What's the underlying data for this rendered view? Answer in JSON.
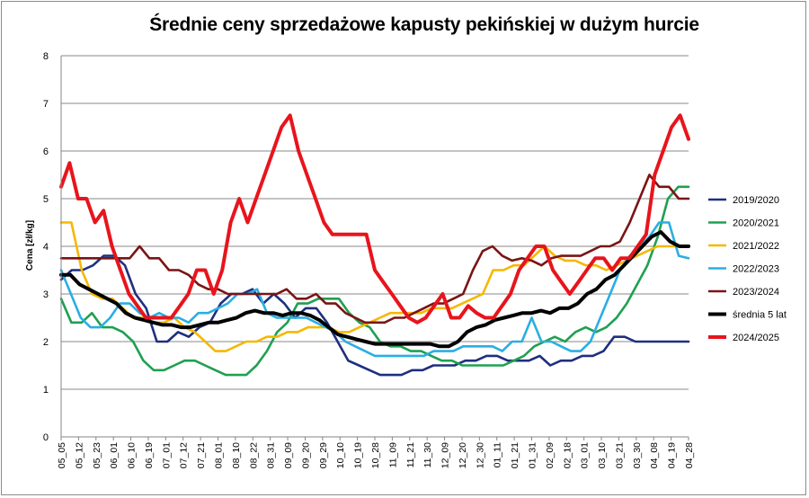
{
  "chart_data": {
    "type": "line",
    "title": "Średnie ceny sprzedażowe kapusty pekińskiej w dużym hurcie",
    "xlabel": "",
    "ylabel": "Cena [zł/kg]",
    "ylim": [
      0,
      8
    ],
    "yticks": [
      0,
      1,
      2,
      3,
      4,
      5,
      6,
      7,
      8
    ],
    "grid": "horizontal",
    "legend_position": "right",
    "x_tick_labels": [
      "05_05",
      "05_12",
      "05_23",
      "06_01",
      "06_10",
      "06_19",
      "07_01",
      "07_12",
      "07_21",
      "08_01",
      "08_10",
      "08_22",
      "08_31",
      "09_09",
      "09_20",
      "09_29",
      "10_10",
      "10_19",
      "10_28",
      "11_09",
      "11_21",
      "11_30",
      "12_09",
      "12_20",
      "12_30",
      "01_11",
      "01_21",
      "01_31",
      "02_09",
      "02_18",
      "03_01",
      "03_10",
      "03_21",
      "03_30",
      "04_08",
      "04_19",
      "04_28"
    ],
    "series": [
      {
        "name": "2019/2020",
        "color": "#1f2f7e",
        "width": 2.6,
        "values": [
          3.3,
          3.5,
          3.5,
          3.6,
          3.8,
          3.8,
          3.6,
          3.0,
          2.7,
          2.0,
          2.0,
          2.2,
          2.1,
          2.3,
          2.4,
          2.8,
          3.0,
          3.0,
          3.1,
          2.8,
          3.0,
          2.8,
          2.5,
          2.7,
          2.7,
          2.4,
          2.0,
          1.6,
          1.5,
          1.4,
          1.3,
          1.3,
          1.3,
          1.4,
          1.4,
          1.5,
          1.5,
          1.5,
          1.6,
          1.6,
          1.7,
          1.7,
          1.6,
          1.6,
          1.6,
          1.7,
          1.5,
          1.6,
          1.6,
          1.7,
          1.7,
          1.8,
          2.1,
          2.1,
          2.0,
          2.0,
          2.0,
          2.0,
          2.0,
          2.0
        ]
      },
      {
        "name": "2020/2021",
        "color": "#1fa050",
        "width": 2.6,
        "values": [
          2.9,
          2.4,
          2.4,
          2.6,
          2.3,
          2.3,
          2.2,
          2.0,
          1.6,
          1.4,
          1.4,
          1.5,
          1.6,
          1.6,
          1.5,
          1.4,
          1.3,
          1.3,
          1.3,
          1.5,
          1.8,
          2.2,
          2.4,
          2.8,
          2.8,
          2.9,
          2.9,
          2.9,
          2.6,
          2.4,
          2.3,
          2.0,
          1.9,
          1.9,
          1.8,
          1.8,
          1.7,
          1.6,
          1.6,
          1.5,
          1.5,
          1.5,
          1.5,
          1.5,
          1.6,
          1.7,
          1.9,
          2.0,
          2.1,
          2.0,
          2.2,
          2.3,
          2.2,
          2.3,
          2.5,
          2.8,
          3.2,
          3.6,
          4.2,
          5.0,
          5.25,
          5.25
        ]
      },
      {
        "name": "2021/2022",
        "color": "#f5b800",
        "width": 2.6,
        "values": [
          4.5,
          4.5,
          3.5,
          3.0,
          2.9,
          2.9,
          2.7,
          2.5,
          2.5,
          2.4,
          2.4,
          2.5,
          2.3,
          2.2,
          2.0,
          1.8,
          1.8,
          1.9,
          2.0,
          2.0,
          2.1,
          2.1,
          2.2,
          2.2,
          2.3,
          2.3,
          2.3,
          2.2,
          2.2,
          2.3,
          2.4,
          2.5,
          2.6,
          2.6,
          2.6,
          2.6,
          2.7,
          2.7,
          2.7,
          2.8,
          2.9,
          3.0,
          3.5,
          3.5,
          3.6,
          3.6,
          3.8,
          4.0,
          3.8,
          3.7,
          3.7,
          3.6,
          3.6,
          3.5,
          3.6,
          3.7,
          3.8,
          3.9,
          4.0,
          4.0,
          4.0,
          4.0
        ]
      },
      {
        "name": "2022/2023",
        "color": "#2aaee2",
        "width": 2.6,
        "values": [
          3.5,
          3.0,
          2.5,
          2.3,
          2.3,
          2.5,
          2.8,
          2.8,
          2.6,
          2.5,
          2.6,
          2.5,
          2.5,
          2.4,
          2.6,
          2.6,
          2.7,
          2.8,
          3.0,
          3.0,
          3.1,
          2.6,
          2.5,
          2.5,
          2.5,
          2.5,
          2.4,
          2.3,
          2.2,
          2.0,
          1.9,
          1.8,
          1.7,
          1.7,
          1.7,
          1.7,
          1.7,
          1.7,
          1.8,
          1.8,
          1.8,
          1.9,
          1.9,
          1.9,
          1.9,
          1.8,
          2.0,
          2.0,
          2.5,
          2.0,
          2.0,
          1.9,
          1.8,
          1.8,
          2.0,
          2.5,
          3.0,
          3.5,
          3.8,
          4.0,
          4.2,
          4.5,
          4.5,
          3.8,
          3.75
        ]
      },
      {
        "name": "2023/2024",
        "color": "#7b1414",
        "width": 2.6,
        "values": [
          3.75,
          3.75,
          3.75,
          3.75,
          3.75,
          3.75,
          3.75,
          3.75,
          4.0,
          3.75,
          3.75,
          3.5,
          3.5,
          3.4,
          3.2,
          3.1,
          3.1,
          3.0,
          3.0,
          3.0,
          3.0,
          3.0,
          3.0,
          3.1,
          2.9,
          2.9,
          3.0,
          2.8,
          2.8,
          2.6,
          2.5,
          2.4,
          2.4,
          2.4,
          2.5,
          2.5,
          2.6,
          2.7,
          2.8,
          2.8,
          2.9,
          3.0,
          3.5,
          3.9,
          4.0,
          3.8,
          3.7,
          3.75,
          3.7,
          3.6,
          3.75,
          3.8,
          3.8,
          3.8,
          3.9,
          4.0,
          4.0,
          4.1,
          4.5,
          5.0,
          5.5,
          5.25,
          5.25,
          5.0,
          5.0
        ]
      },
      {
        "name": "średnia 5 lat",
        "color": "#000000",
        "width": 4,
        "values": [
          3.4,
          3.4,
          3.2,
          3.1,
          3.0,
          2.9,
          2.8,
          2.6,
          2.5,
          2.45,
          2.4,
          2.35,
          2.35,
          2.3,
          2.3,
          2.35,
          2.4,
          2.4,
          2.45,
          2.5,
          2.6,
          2.65,
          2.6,
          2.6,
          2.55,
          2.6,
          2.6,
          2.55,
          2.45,
          2.3,
          2.15,
          2.1,
          2.05,
          2.0,
          1.95,
          1.95,
          1.95,
          1.95,
          1.95,
          1.95,
          1.95,
          1.9,
          1.9,
          2.0,
          2.2,
          2.3,
          2.35,
          2.45,
          2.5,
          2.55,
          2.6,
          2.6,
          2.65,
          2.6,
          2.7,
          2.7,
          2.8,
          3.0,
          3.1,
          3.3,
          3.4,
          3.6,
          3.8,
          4.0,
          4.2,
          4.3,
          4.1,
          4.0,
          4.0
        ]
      },
      {
        "name": "2024/2025",
        "color": "#e8141c",
        "width": 4,
        "values": [
          5.25,
          5.75,
          5.0,
          5.0,
          4.5,
          4.75,
          4.0,
          3.5,
          3.0,
          2.75,
          2.5,
          2.5,
          2.5,
          2.5,
          2.75,
          3.0,
          3.5,
          3.5,
          3.0,
          3.5,
          4.5,
          5.0,
          4.5,
          5.0,
          5.5,
          6.0,
          6.5,
          6.75,
          6.0,
          5.5,
          5.0,
          4.5,
          4.25,
          4.25,
          4.25,
          4.25,
          4.25,
          3.5,
          3.25,
          3.0,
          2.75,
          2.5,
          2.4,
          2.5,
          2.75,
          3.0,
          2.5,
          2.5,
          2.75,
          2.6,
          2.5,
          2.5,
          2.75,
          3.0,
          3.5,
          3.75,
          4.0,
          4.0,
          3.5,
          3.25,
          3.0,
          3.25,
          3.5,
          3.75,
          3.75,
          3.5,
          3.75,
          3.75,
          4.0,
          4.25,
          5.5,
          6.0,
          6.5,
          6.75,
          6.25
        ]
      }
    ]
  }
}
